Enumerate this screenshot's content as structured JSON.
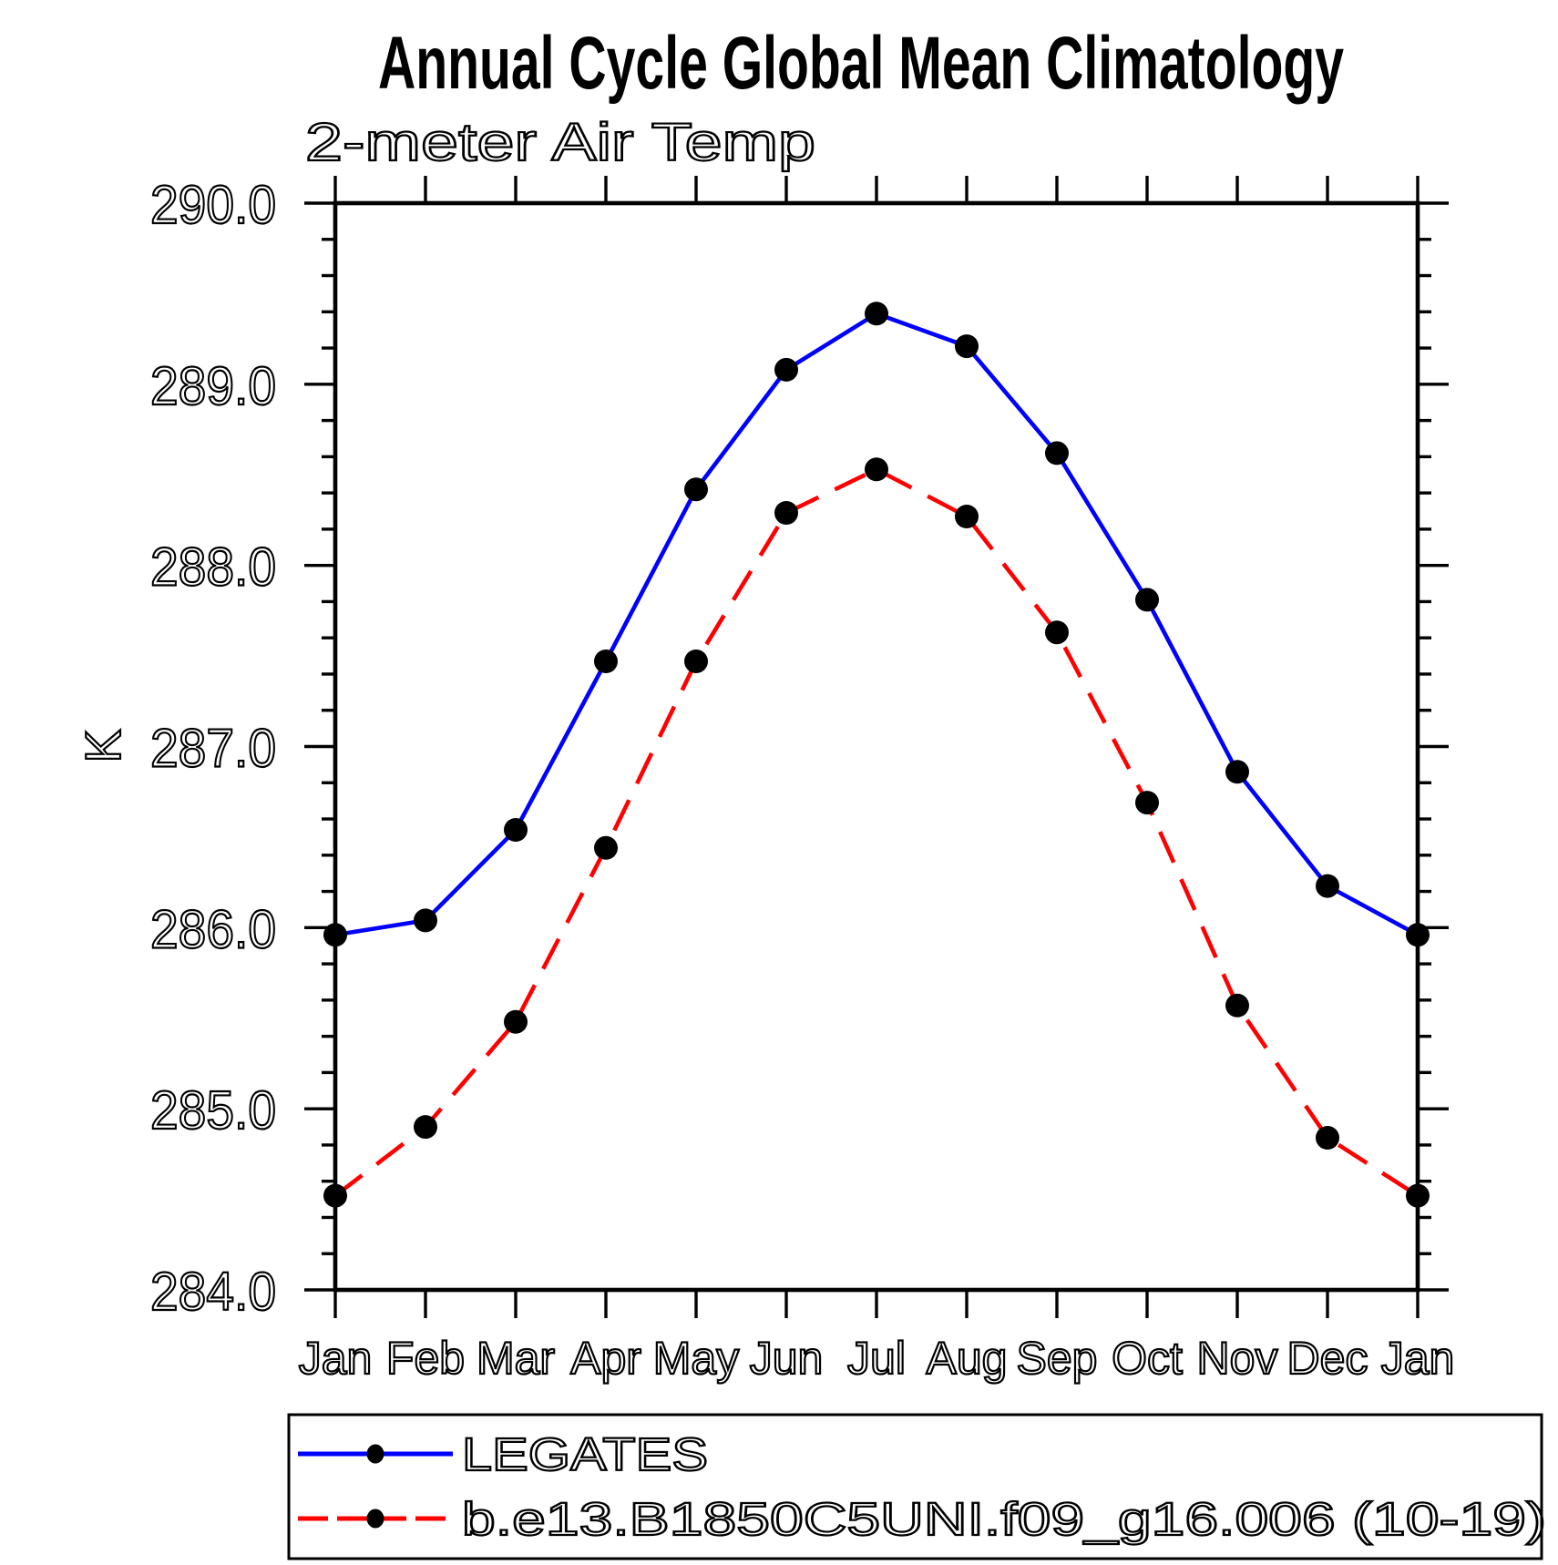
{
  "title": "Annual Cycle Global Mean Climatology",
  "subtitle": "2-meter Air Temp",
  "y_axis": {
    "label": "K",
    "tick_labels": [
      "290.0",
      "289.0",
      "288.0",
      "287.0",
      "286.0",
      "285.0",
      "284.0"
    ]
  },
  "x_axis": {
    "tick_labels": [
      "Jan",
      "Feb",
      "Mar",
      "Apr",
      "May",
      "Jun",
      "Jul",
      "Aug",
      "Sep",
      "Oct",
      "Nov",
      "Dec",
      "Jan"
    ]
  },
  "legend": {
    "items": [
      {
        "label": "LEGATES"
      },
      {
        "label": "b.e13.B1850C5UNI.f09_g16.006 (10-19)"
      }
    ]
  },
  "chart_data": {
    "type": "line",
    "title": "Annual Cycle Global Mean Climatology",
    "subtitle": "2-meter Air Temp",
    "xlabel": "",
    "ylabel": "K",
    "categories": [
      "Jan",
      "Feb",
      "Mar",
      "Apr",
      "May",
      "Jun",
      "Jul",
      "Aug",
      "Sep",
      "Oct",
      "Nov",
      "Dec",
      "Jan"
    ],
    "series": [
      {
        "name": "LEGATES",
        "color": "#0000ff",
        "line_style": "solid",
        "marker": "filled-circle",
        "marker_color": "#000000",
        "values": [
          285.96,
          286.04,
          286.54,
          287.47,
          288.42,
          289.08,
          289.39,
          289.21,
          288.62,
          287.81,
          286.86,
          286.23,
          285.96
        ]
      },
      {
        "name": "b.e13.B1850C5UNI.f09_g16.006 (10-19)",
        "color": "#ff0000",
        "line_style": "dashed",
        "marker": "filled-circle",
        "marker_color": "#000000",
        "values": [
          284.52,
          284.9,
          285.48,
          286.44,
          287.47,
          288.29,
          288.53,
          288.27,
          287.63,
          286.69,
          285.57,
          284.84,
          284.52
        ]
      }
    ],
    "ylim": [
      284.0,
      290.0
    ],
    "ytick_interval": 1.0,
    "yminor_interval": 0.2,
    "grid": false,
    "tick_style": "outward-all-sides",
    "legend_position": "bottom-left"
  }
}
